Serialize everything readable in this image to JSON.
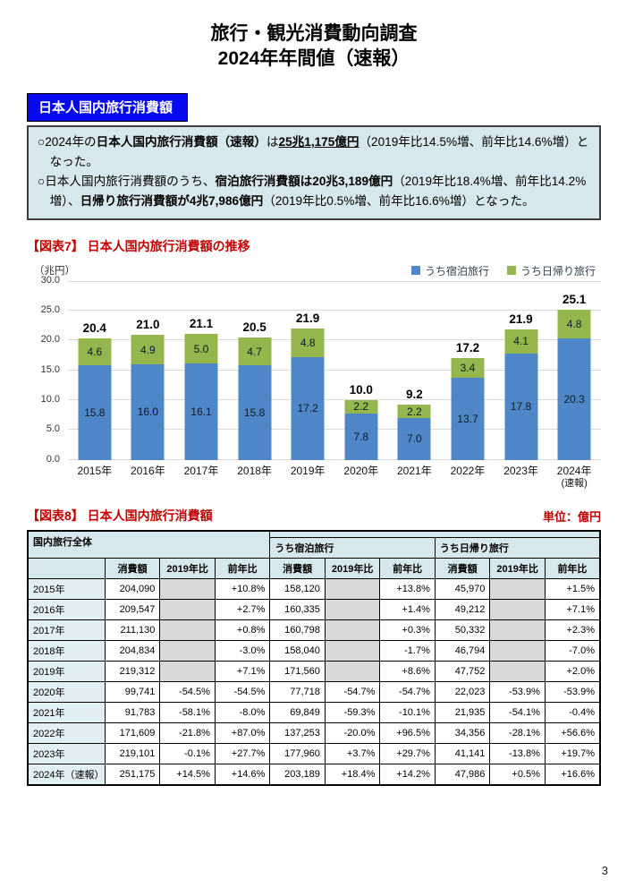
{
  "header": {
    "title_line1": "旅行・観光消費動向調査",
    "title_line2": "2024年年間値（速報）"
  },
  "banner": {
    "label": "日本人国内旅行消費額"
  },
  "summary": {
    "bullets": [
      {
        "segments": [
          {
            "text": "○2024年の",
            "style": ""
          },
          {
            "text": "日本人国内旅行消費額（速報）",
            "style": "b"
          },
          {
            "text": "は",
            "style": ""
          },
          {
            "text": "25兆1,175億円",
            "style": "bu"
          },
          {
            "text": "（2019年比14.5%増、前年比14.6%増）となった。",
            "style": ""
          }
        ]
      },
      {
        "segments": [
          {
            "text": "○日本人国内旅行消費額のうち、",
            "style": ""
          },
          {
            "text": "宿泊旅行消費額は20兆3,189億円",
            "style": "b"
          },
          {
            "text": "（2019年比18.4%増、前年比14.2%増）、",
            "style": ""
          },
          {
            "text": "日帰り旅行消費額が4兆7,986億円",
            "style": "b"
          },
          {
            "text": "（2019年比0.5%増、前年比16.6%増）となった。",
            "style": ""
          }
        ]
      }
    ]
  },
  "chart_data": {
    "type": "bar",
    "stacked": true,
    "title": "【図表7】 日本人国内旅行消費額の推移",
    "unit_label": "（兆円）",
    "categories": [
      "2015年",
      "2016年",
      "2017年",
      "2018年",
      "2019年",
      "2020年",
      "2021年",
      "2022年",
      "2023年",
      "2024年\n(速報)"
    ],
    "series": [
      {
        "name": "うち宿泊旅行",
        "color": "#4e86c8",
        "values": [
          15.8,
          16.0,
          16.1,
          15.8,
          17.2,
          7.8,
          7.0,
          13.7,
          17.8,
          20.3
        ]
      },
      {
        "name": "うち日帰り旅行",
        "color": "#94b64d",
        "values": [
          4.6,
          4.9,
          5.0,
          4.7,
          4.8,
          2.2,
          2.2,
          3.4,
          4.1,
          4.8
        ]
      }
    ],
    "totals": [
      20.4,
      21.0,
      21.1,
      20.5,
      21.9,
      10.0,
      9.2,
      17.2,
      21.9,
      25.1
    ],
    "ylim": [
      0,
      30
    ],
    "ytick_step": 5,
    "grid": true,
    "legend_position": "top-right"
  },
  "table": {
    "title": "【図表8】 日本人国内旅行消費額",
    "unit": "単位：億円",
    "group_header": "国内旅行全体",
    "subgroup_headers": [
      "うち宿泊旅行",
      "うち日帰り旅行"
    ],
    "col_headers": [
      "消費額",
      "2019年比",
      "前年比"
    ],
    "rows": [
      {
        "year": "2015年",
        "cells": [
          "204,090",
          "",
          "+10.8%",
          "158,120",
          "",
          "+13.8%",
          "45,970",
          "",
          "+1.5%"
        ]
      },
      {
        "year": "2016年",
        "cells": [
          "209,547",
          "",
          "+2.7%",
          "160,335",
          "",
          "+1.4%",
          "49,212",
          "",
          "+7.1%"
        ]
      },
      {
        "year": "2017年",
        "cells": [
          "211,130",
          "",
          "+0.8%",
          "160,798",
          "",
          "+0.3%",
          "50,332",
          "",
          "+2.3%"
        ]
      },
      {
        "year": "2018年",
        "cells": [
          "204,834",
          "",
          "-3.0%",
          "158,040",
          "",
          "-1.7%",
          "46,794",
          "",
          "-7.0%"
        ]
      },
      {
        "year": "2019年",
        "cells": [
          "219,312",
          "",
          "+7.1%",
          "171,560",
          "",
          "+8.6%",
          "47,752",
          "",
          "+2.0%"
        ]
      },
      {
        "year": "2020年",
        "cells": [
          "99,741",
          "-54.5%",
          "-54.5%",
          "77,718",
          "-54.7%",
          "-54.7%",
          "22,023",
          "-53.9%",
          "-53.9%"
        ]
      },
      {
        "year": "2021年",
        "cells": [
          "91,783",
          "-58.1%",
          "-8.0%",
          "69,849",
          "-59.3%",
          "-10.1%",
          "21,935",
          "-54.1%",
          "-0.4%"
        ]
      },
      {
        "year": "2022年",
        "cells": [
          "171,609",
          "-21.8%",
          "+87.0%",
          "137,253",
          "-20.0%",
          "+96.5%",
          "34,356",
          "-28.1%",
          "+56.6%"
        ]
      },
      {
        "year": "2023年",
        "cells": [
          "219,101",
          "-0.1%",
          "+27.7%",
          "177,960",
          "+3.7%",
          "+29.7%",
          "41,141",
          "-13.8%",
          "+19.7%"
        ]
      },
      {
        "year": "2024年（速報）",
        "cells": [
          "251,175",
          "+14.5%",
          "+14.6%",
          "203,189",
          "+18.4%",
          "+14.2%",
          "47,986",
          "+0.5%",
          "+16.6%"
        ]
      }
    ]
  },
  "page_number": "3",
  "colors": {
    "banner_blue": "#0808ee",
    "accent_red": "#c00000",
    "summary_bg": "#d7e7ee",
    "bar_blue": "#4e86c8",
    "bar_green": "#94b64d",
    "table_header_bg": "#d6e7ed",
    "na_cell_gray": "#d9d9d9"
  }
}
